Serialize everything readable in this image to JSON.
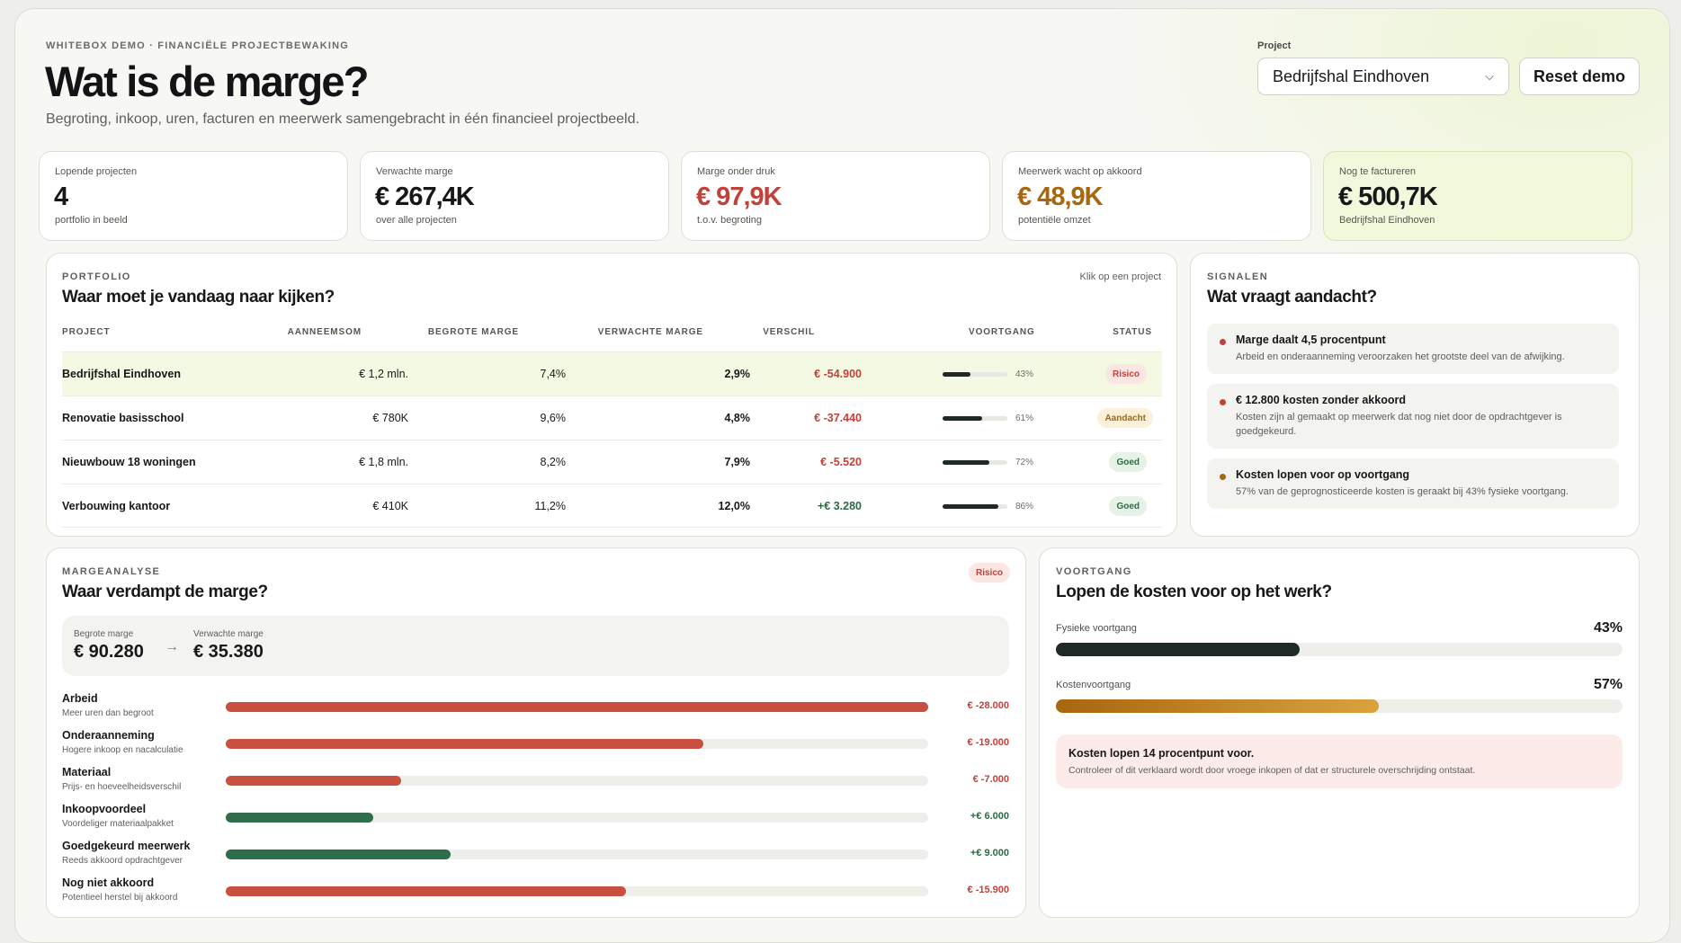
{
  "header": {
    "eyebrow": "WHITEBOX DEMO · FINANCIËLE PROJECTBEWAKING",
    "title": "Wat is de marge?",
    "subtitle": "Begroting, inkoop, uren, facturen en meerwerk samengebracht in één financieel projectbeeld.",
    "project_label": "Project",
    "project_selected": "Bedrijfshal Eindhoven",
    "reset_label": "Reset demo"
  },
  "kpis": [
    {
      "label": "Lopende projecten",
      "value": "4",
      "sub": "portfolio in beeld",
      "color": "#16181a"
    },
    {
      "label": "Verwachte marge",
      "value": "€ 267,4K",
      "sub": "over alle projecten",
      "color": "#16181a"
    },
    {
      "label": "Marge onder druk",
      "value": "€ 97,9K",
      "sub": "t.o.v. begroting",
      "color": "#c2413a"
    },
    {
      "label": "Meerwerk wacht op akkoord",
      "value": "€ 48,9K",
      "sub": "potentiële omzet",
      "color": "#a8660f"
    },
    {
      "label": "Nog te factureren",
      "value": "€ 500,7K",
      "sub": "Bedrijfshal Eindhoven",
      "color": "#16181a"
    }
  ],
  "portfolio": {
    "eyebrow": "PORTFOLIO",
    "title": "Waar moet je vandaag naar kijken?",
    "hint": "Klik op een project",
    "columns": [
      "PROJECT",
      "AANNEEMSOM",
      "BEGROTE MARGE",
      "VERWACHTE MARGE",
      "VERSCHIL",
      "VOORTGANG",
      "STATUS"
    ],
    "rows": [
      {
        "name": "Bedrijfshal Eindhoven",
        "aanneemsom": "€ 1,2 mln.",
        "begroot": "7,4%",
        "verwacht": "2,9%",
        "verschil": "€ -54.900",
        "voortgang": 43,
        "voortgang_label": "43%",
        "status": "Risico"
      },
      {
        "name": "Renovatie basisschool",
        "aanneemsom": "€ 780K",
        "begroot": "9,6%",
        "verwacht": "4,8%",
        "verschil": "€ -37.440",
        "voortgang": 61,
        "voortgang_label": "61%",
        "status": "Aandacht"
      },
      {
        "name": "Nieuwbouw 18 woningen",
        "aanneemsom": "€ 1,8 mln.",
        "begroot": "8,2%",
        "verwacht": "7,9%",
        "verschil": "€ -5.520",
        "voortgang": 72,
        "voortgang_label": "72%",
        "status": "Goed"
      },
      {
        "name": "Verbouwing kantoor",
        "aanneemsom": "€ 410K",
        "begroot": "11,2%",
        "verwacht": "12,0%",
        "verschil": "+€ 3.280",
        "voortgang": 86,
        "voortgang_label": "86%",
        "status": "Goed"
      }
    ]
  },
  "signalen": {
    "eyebrow": "SIGNALEN",
    "title": "Wat vraagt aandacht?",
    "items": [
      {
        "title": "Marge daalt 4,5 procentpunt",
        "desc": "Arbeid en onderaanneming veroorzaken het grootste deel van de afwijking.",
        "color": "#c2413a"
      },
      {
        "title": "€ 12.800 kosten zonder akkoord",
        "desc": "Kosten zijn al gemaakt op meerwerk dat nog niet door de opdrachtgever is goedgekeurd.",
        "color": "#c2413a"
      },
      {
        "title": "Kosten lopen voor op voortgang",
        "desc": "57% van de geprognosticeerde kosten is geraakt bij 43% fysieke voortgang.",
        "color": "#a8660f"
      }
    ]
  },
  "margeanalyse": {
    "eyebrow": "MARGEANALYSE",
    "title": "Waar verdampt de marge?",
    "badge": "Risico",
    "begroot_label": "Begrote marge",
    "begroot_value": "€ 90.280",
    "arrow": "→",
    "verwacht_label": "Verwachte marge",
    "verwacht_value": "€ 35.380",
    "items": [
      {
        "label": "Arbeid",
        "sub": "Meer uren dan begroot",
        "value": "€ -28.000",
        "fraction": 1.0,
        "type": "neg"
      },
      {
        "label": "Onderaanneming",
        "sub": "Hogere inkoop en nacalculatie",
        "value": "€ -19.000",
        "fraction": 0.68,
        "type": "neg"
      },
      {
        "label": "Materiaal",
        "sub": "Prijs- en hoeveelheidsverschil",
        "value": "€ -7.000",
        "fraction": 0.25,
        "type": "neg"
      },
      {
        "label": "Inkoopvoordeel",
        "sub": "Voordeliger materiaalpakket",
        "value": "+€ 6.000",
        "fraction": 0.21,
        "type": "pos"
      },
      {
        "label": "Goedgekeurd meerwerk",
        "sub": "Reeds akkoord opdrachtgever",
        "value": "+€ 9.000",
        "fraction": 0.32,
        "type": "pos"
      },
      {
        "label": "Nog niet akkoord",
        "sub": "Potentieel herstel bij akkoord",
        "value": "€ -15.900",
        "fraction": 0.57,
        "type": "neg"
      }
    ]
  },
  "voortgang": {
    "eyebrow": "VOORTGANG",
    "title": "Lopen de kosten voor op het werk?",
    "fysiek_label": "Fysieke voortgang",
    "fysiek_value": "43%",
    "fysiek_fraction": 0.43,
    "kosten_label": "Kostenvoortgang",
    "kosten_value": "57%",
    "kosten_fraction": 0.57,
    "alert_title": "Kosten lopen 14 procentpunt voor.",
    "alert_desc": "Controleer of dit verklaard wordt door vroege inkopen of dat er structurele overschrijding ontstaat."
  },
  "colors": {
    "negative": "#c9503f",
    "positive": "#2f6d4b",
    "dark": "#1f2a25",
    "gold": "#b8740f"
  }
}
